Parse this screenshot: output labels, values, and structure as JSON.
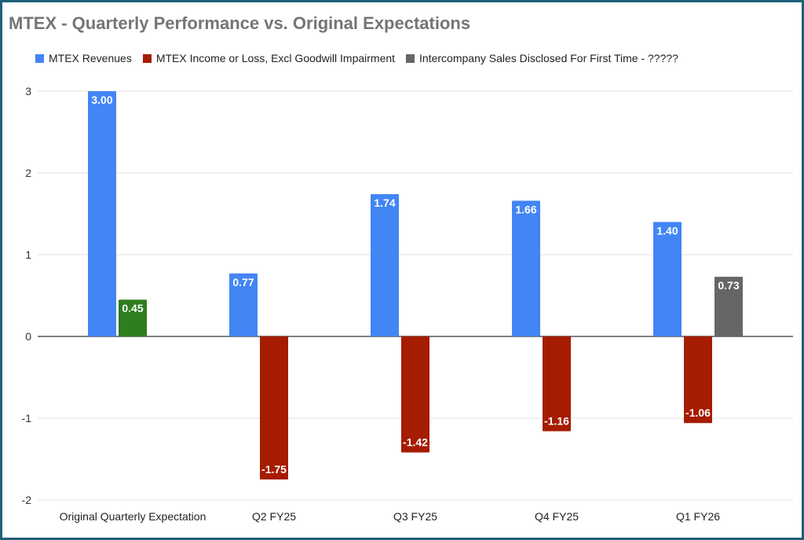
{
  "chart_data": {
    "type": "bar",
    "title": "MTEX - Quarterly Performance vs. Original Expectations",
    "categories": [
      "Original Quarterly Expectation",
      "Q2 FY25",
      "Q3 FY25",
      "Q4 FY25",
      "Q1 FY26"
    ],
    "series": [
      {
        "name": "MTEX Revenues",
        "color": "#4285f4",
        "values": [
          3.0,
          0.77,
          1.74,
          1.66,
          1.4
        ],
        "point_colors": [
          "#4285f4",
          "#4285f4",
          "#4285f4",
          "#4285f4",
          "#4285f4"
        ]
      },
      {
        "name": "MTEX Income or Loss, Excl Goodwill Impairment",
        "color": "#a61c00",
        "values": [
          0.45,
          -1.75,
          -1.42,
          -1.16,
          -1.06
        ],
        "point_colors": [
          "#2e7d1e",
          "#a61c00",
          "#a61c00",
          "#a61c00",
          "#a61c00"
        ]
      },
      {
        "name": "Intercompany Sales Disclosed For First Time - ?????",
        "color": "#666666",
        "values": [
          null,
          null,
          null,
          null,
          0.73
        ],
        "point_colors": [
          "#666666",
          "#666666",
          "#666666",
          "#666666",
          "#666666"
        ]
      }
    ],
    "data_labels": [
      [
        "3.00",
        "0.77",
        "1.74",
        "1.66",
        "1.40"
      ],
      [
        "0.45",
        "-1.75",
        "-1.42",
        "-1.16",
        "-1.06"
      ],
      [
        null,
        null,
        null,
        null,
        "0.73"
      ]
    ],
    "ylim": [
      -2,
      3
    ],
    "yticks": [
      3,
      2,
      1,
      0,
      -1,
      -2
    ],
    "xlabel": "",
    "ylabel": "",
    "grid": true,
    "legend_position": "top-left"
  }
}
